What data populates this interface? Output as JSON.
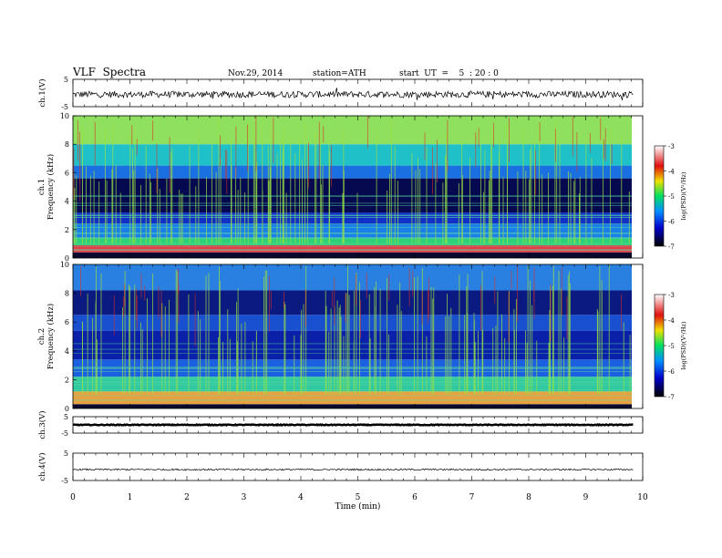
{
  "header": {
    "title": "VLF  Spectra",
    "date": "Nov.29, 2014",
    "station": "station=ATH",
    "start": "start  UT  =    5  : 20 : 0"
  },
  "chart_data": [
    {
      "type": "line",
      "panel": "ch1-waveform",
      "ylabel": "ch.1(V)",
      "ylim": [
        -5,
        5
      ],
      "yticks": [
        "5",
        "-5"
      ],
      "x_range": [
        0,
        9.83
      ],
      "baseline_v": -0.5,
      "noise_amplitude_v": 1.2
    },
    {
      "type": "heatmap",
      "panel": "ch1-spectrogram",
      "ylabel_line1": "ch.1",
      "ylabel_line2": "Frequency (kHz)",
      "ylim": [
        0,
        10
      ],
      "yticks": [
        "0",
        "2",
        "4",
        "6",
        "8",
        "10"
      ],
      "colorbar": {
        "label": "log(PSD)(V²/Hz)",
        "range": [
          -7,
          -3
        ],
        "ticks": [
          "-3",
          "-4",
          "-5",
          "-6",
          "-7"
        ]
      },
      "bands": [
        {
          "from": 0.0,
          "to": 0.4,
          "color": "#0a0a2e"
        },
        {
          "from": 0.4,
          "to": 0.9,
          "color": "#e0404a"
        },
        {
          "from": 0.9,
          "to": 1.4,
          "color": "#2fd07a"
        },
        {
          "from": 1.4,
          "to": 2.4,
          "color": "#1a7fe8"
        },
        {
          "from": 2.4,
          "to": 3.2,
          "color": "#1030c8"
        },
        {
          "from": 3.2,
          "to": 5.6,
          "color": "#050a50"
        },
        {
          "from": 5.6,
          "to": 6.5,
          "color": "#1a70e0"
        },
        {
          "from": 6.5,
          "to": 8.0,
          "color": "#20c0c8"
        },
        {
          "from": 8.0,
          "to": 10.0,
          "color": "#90e060"
        }
      ]
    },
    {
      "type": "heatmap",
      "panel": "ch2-spectrogram",
      "ylabel_line1": "ch.2",
      "ylabel_line2": "Frequency (kHz)",
      "ylim": [
        0,
        10
      ],
      "yticks": [
        "0",
        "2",
        "4",
        "6",
        "8",
        "10"
      ],
      "colorbar": {
        "label": "log(PSD)(V²/Hz)",
        "range": [
          -7,
          -3
        ],
        "ticks": [
          "-3",
          "-4",
          "-5",
          "-6",
          "-7"
        ]
      },
      "bands": [
        {
          "from": 0.0,
          "to": 0.3,
          "color": "#0a0a2e"
        },
        {
          "from": 0.3,
          "to": 1.2,
          "color": "#e8a040"
        },
        {
          "from": 1.2,
          "to": 2.2,
          "color": "#30c8a0"
        },
        {
          "from": 2.2,
          "to": 3.4,
          "color": "#1a60e0"
        },
        {
          "from": 3.4,
          "to": 5.4,
          "color": "#0a20a8"
        },
        {
          "from": 5.4,
          "to": 6.5,
          "color": "#1850d0"
        },
        {
          "from": 6.5,
          "to": 8.2,
          "color": "#0a1a80"
        },
        {
          "from": 8.2,
          "to": 10.0,
          "color": "#2a80e0"
        }
      ]
    },
    {
      "type": "line",
      "panel": "ch3-waveform",
      "ylabel": "ch.3(V)",
      "ylim": [
        -5,
        5
      ],
      "yticks": [
        "5",
        "-5"
      ],
      "x_range": [
        0,
        9.83
      ],
      "baseline_v": 0.0,
      "noise_amplitude_v": 0.25
    },
    {
      "type": "line",
      "panel": "ch4-waveform",
      "ylabel": "ch.4(V)",
      "ylim": [
        -5,
        5
      ],
      "yticks": [
        "5",
        "-5"
      ],
      "x_range": [
        0,
        9.83
      ],
      "baseline_v": -1.0,
      "noise_amplitude_v": 0.3
    }
  ],
  "xaxis": {
    "label": "Time  (min)",
    "range": [
      0,
      10
    ],
    "ticks": [
      "0",
      "1",
      "2",
      "3",
      "4",
      "5",
      "6",
      "7",
      "8",
      "9",
      "10"
    ]
  }
}
